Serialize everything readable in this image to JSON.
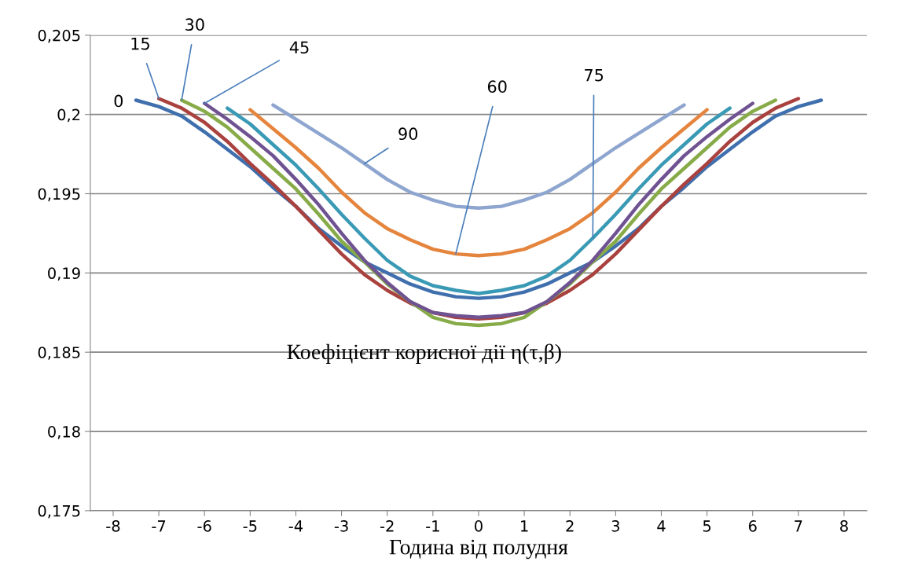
{
  "chart_data": {
    "type": "line",
    "xlabel": "Година від полудня",
    "annotations": [
      "Коефіцієнт корисної дії η(τ,β)"
    ],
    "xlim": [
      -8.5,
      8.5
    ],
    "xticks": [
      -8,
      -7,
      -6,
      -5,
      -4,
      -3,
      -2,
      -1,
      0,
      1,
      2,
      3,
      4,
      5,
      6,
      7,
      8
    ],
    "ylim": [
      0.175,
      0.205
    ],
    "yticks": [
      {
        "value": 0.175,
        "label": "0,175"
      },
      {
        "value": 0.18,
        "label": "0,18"
      },
      {
        "value": 0.185,
        "label": "0,185"
      },
      {
        "value": 0.19,
        "label": "0,19"
      },
      {
        "value": 0.195,
        "label": "0,195"
      },
      {
        "value": 0.2,
        "label": "0,2"
      },
      {
        "value": 0.205,
        "label": "0,205"
      }
    ],
    "grid": "y",
    "legend": false,
    "marker": "none",
    "line_style": "solid",
    "series": [
      {
        "name": "0",
        "color": "#3f6fad",
        "x": [
          -7.5,
          -7,
          -6.5,
          -6,
          -5.5,
          -5,
          -4.5,
          -4,
          -3.5,
          -3,
          -2.5,
          -2,
          -1.5,
          -1,
          -0.5,
          0,
          0.5,
          1,
          1.5,
          2,
          2.5,
          3,
          3.5,
          4,
          4.5,
          5,
          5.5,
          6,
          6.5,
          7,
          7.5
        ],
        "values": [
          0.2009,
          0.2005,
          0.1999,
          0.1989,
          0.1978,
          0.1967,
          0.1954,
          0.1942,
          0.1928,
          0.1917,
          0.1907,
          0.19,
          0.1893,
          0.1888,
          0.1885,
          0.1884,
          0.1885,
          0.1888,
          0.1893,
          0.19,
          0.1907,
          0.1917,
          0.1928,
          0.1942,
          0.1954,
          0.1967,
          0.1978,
          0.1989,
          0.1999,
          0.2005,
          0.2009
        ]
      },
      {
        "name": "15",
        "color": "#a9413e",
        "x": [
          -7,
          -6.5,
          -6,
          -5.5,
          -5,
          -4.5,
          -4,
          -3.5,
          -3,
          -2.5,
          -2,
          -1.5,
          -1,
          -0.5,
          0,
          0.5,
          1,
          1.5,
          2,
          2.5,
          3,
          3.5,
          4,
          4.5,
          5,
          5.5,
          6,
          6.5,
          7
        ],
        "values": [
          0.201,
          0.2004,
          0.1995,
          0.1983,
          0.1969,
          0.1956,
          0.1942,
          0.1927,
          0.1912,
          0.1899,
          0.1889,
          0.1881,
          0.1875,
          0.1872,
          0.1871,
          0.1872,
          0.1875,
          0.1881,
          0.1889,
          0.1899,
          0.1912,
          0.1927,
          0.1942,
          0.1956,
          0.1969,
          0.1983,
          0.1995,
          0.2004,
          0.201
        ]
      },
      {
        "name": "30",
        "color": "#87ab48",
        "x": [
          -6.5,
          -6,
          -5.5,
          -5,
          -4.5,
          -4,
          -3.5,
          -3,
          -2.5,
          -2,
          -1.5,
          -1,
          -0.5,
          0,
          0.5,
          1,
          1.5,
          2,
          2.5,
          3,
          3.5,
          4,
          4.5,
          5,
          5.5,
          6,
          6.5
        ],
        "values": [
          0.2009,
          0.2002,
          0.1992,
          0.1979,
          0.1966,
          0.1953,
          0.1937,
          0.192,
          0.1907,
          0.1893,
          0.1882,
          0.1872,
          0.1868,
          0.1867,
          0.1868,
          0.1872,
          0.1882,
          0.1893,
          0.1907,
          0.192,
          0.1937,
          0.1953,
          0.1966,
          0.1979,
          0.1992,
          0.2002,
          0.2009
        ]
      },
      {
        "name": "45",
        "color": "#6f5291",
        "x": [
          -6,
          -5.5,
          -5,
          -4.5,
          -4,
          -3.5,
          -3,
          -2.5,
          -2,
          -1.5,
          -1,
          -0.5,
          0,
          0.5,
          1,
          1.5,
          2,
          2.5,
          3,
          3.5,
          4,
          4.5,
          5,
          5.5,
          6
        ],
        "values": [
          0.2007,
          0.1997,
          0.1986,
          0.1974,
          0.1959,
          0.1943,
          0.1925,
          0.1908,
          0.1894,
          0.1882,
          0.1875,
          0.1873,
          0.1872,
          0.1873,
          0.1875,
          0.1882,
          0.1894,
          0.1908,
          0.1925,
          0.1943,
          0.1959,
          0.1974,
          0.1986,
          0.1997,
          0.2007
        ]
      },
      {
        "name": "60",
        "color": "#e5853d",
        "x": [
          -5,
          -4.5,
          -4,
          -3.5,
          -3,
          -2.5,
          -2,
          -1.5,
          -1,
          -0.5,
          0,
          0.5,
          1,
          1.5,
          2,
          2.5,
          3,
          3.5,
          4,
          4.5,
          5
        ],
        "values": [
          0.2003,
          0.1991,
          0.1979,
          0.1966,
          0.1951,
          0.1938,
          0.1928,
          0.1921,
          0.1915,
          0.1912,
          0.1911,
          0.1912,
          0.1915,
          0.1921,
          0.1928,
          0.1938,
          0.1951,
          0.1966,
          0.1979,
          0.1991,
          0.2003
        ]
      },
      {
        "name": "75",
        "color": "#3a9ab5",
        "x": [
          -5.5,
          -5,
          -4.5,
          -4,
          -3.5,
          -3,
          -2.5,
          -2,
          -1.5,
          -1,
          -0.5,
          0,
          0.5,
          1,
          1.5,
          2,
          2.5,
          3,
          3.5,
          4,
          4.5,
          5,
          5.5
        ],
        "values": [
          0.2004,
          0.1994,
          0.1981,
          0.1968,
          0.1953,
          0.1937,
          0.1922,
          0.1908,
          0.1898,
          0.1892,
          0.1889,
          0.1887,
          0.1889,
          0.1892,
          0.1898,
          0.1908,
          0.1922,
          0.1937,
          0.1953,
          0.1968,
          0.1981,
          0.1994,
          0.2004
        ]
      },
      {
        "name": "90",
        "color": "#8ea6cf",
        "x": [
          -4.5,
          -4,
          -3.5,
          -3,
          -2.5,
          -2,
          -1.5,
          -1,
          -0.5,
          0,
          0.5,
          1,
          1.5,
          2,
          2.5,
          3,
          3.5,
          4,
          4.5
        ],
        "values": [
          0.2006,
          0.1997,
          0.1988,
          0.1979,
          0.1969,
          0.1959,
          0.1951,
          0.1946,
          0.1942,
          0.1941,
          0.1942,
          0.1946,
          0.1951,
          0.1959,
          0.1969,
          0.1979,
          0.1988,
          0.1997,
          0.2006
        ]
      }
    ]
  }
}
